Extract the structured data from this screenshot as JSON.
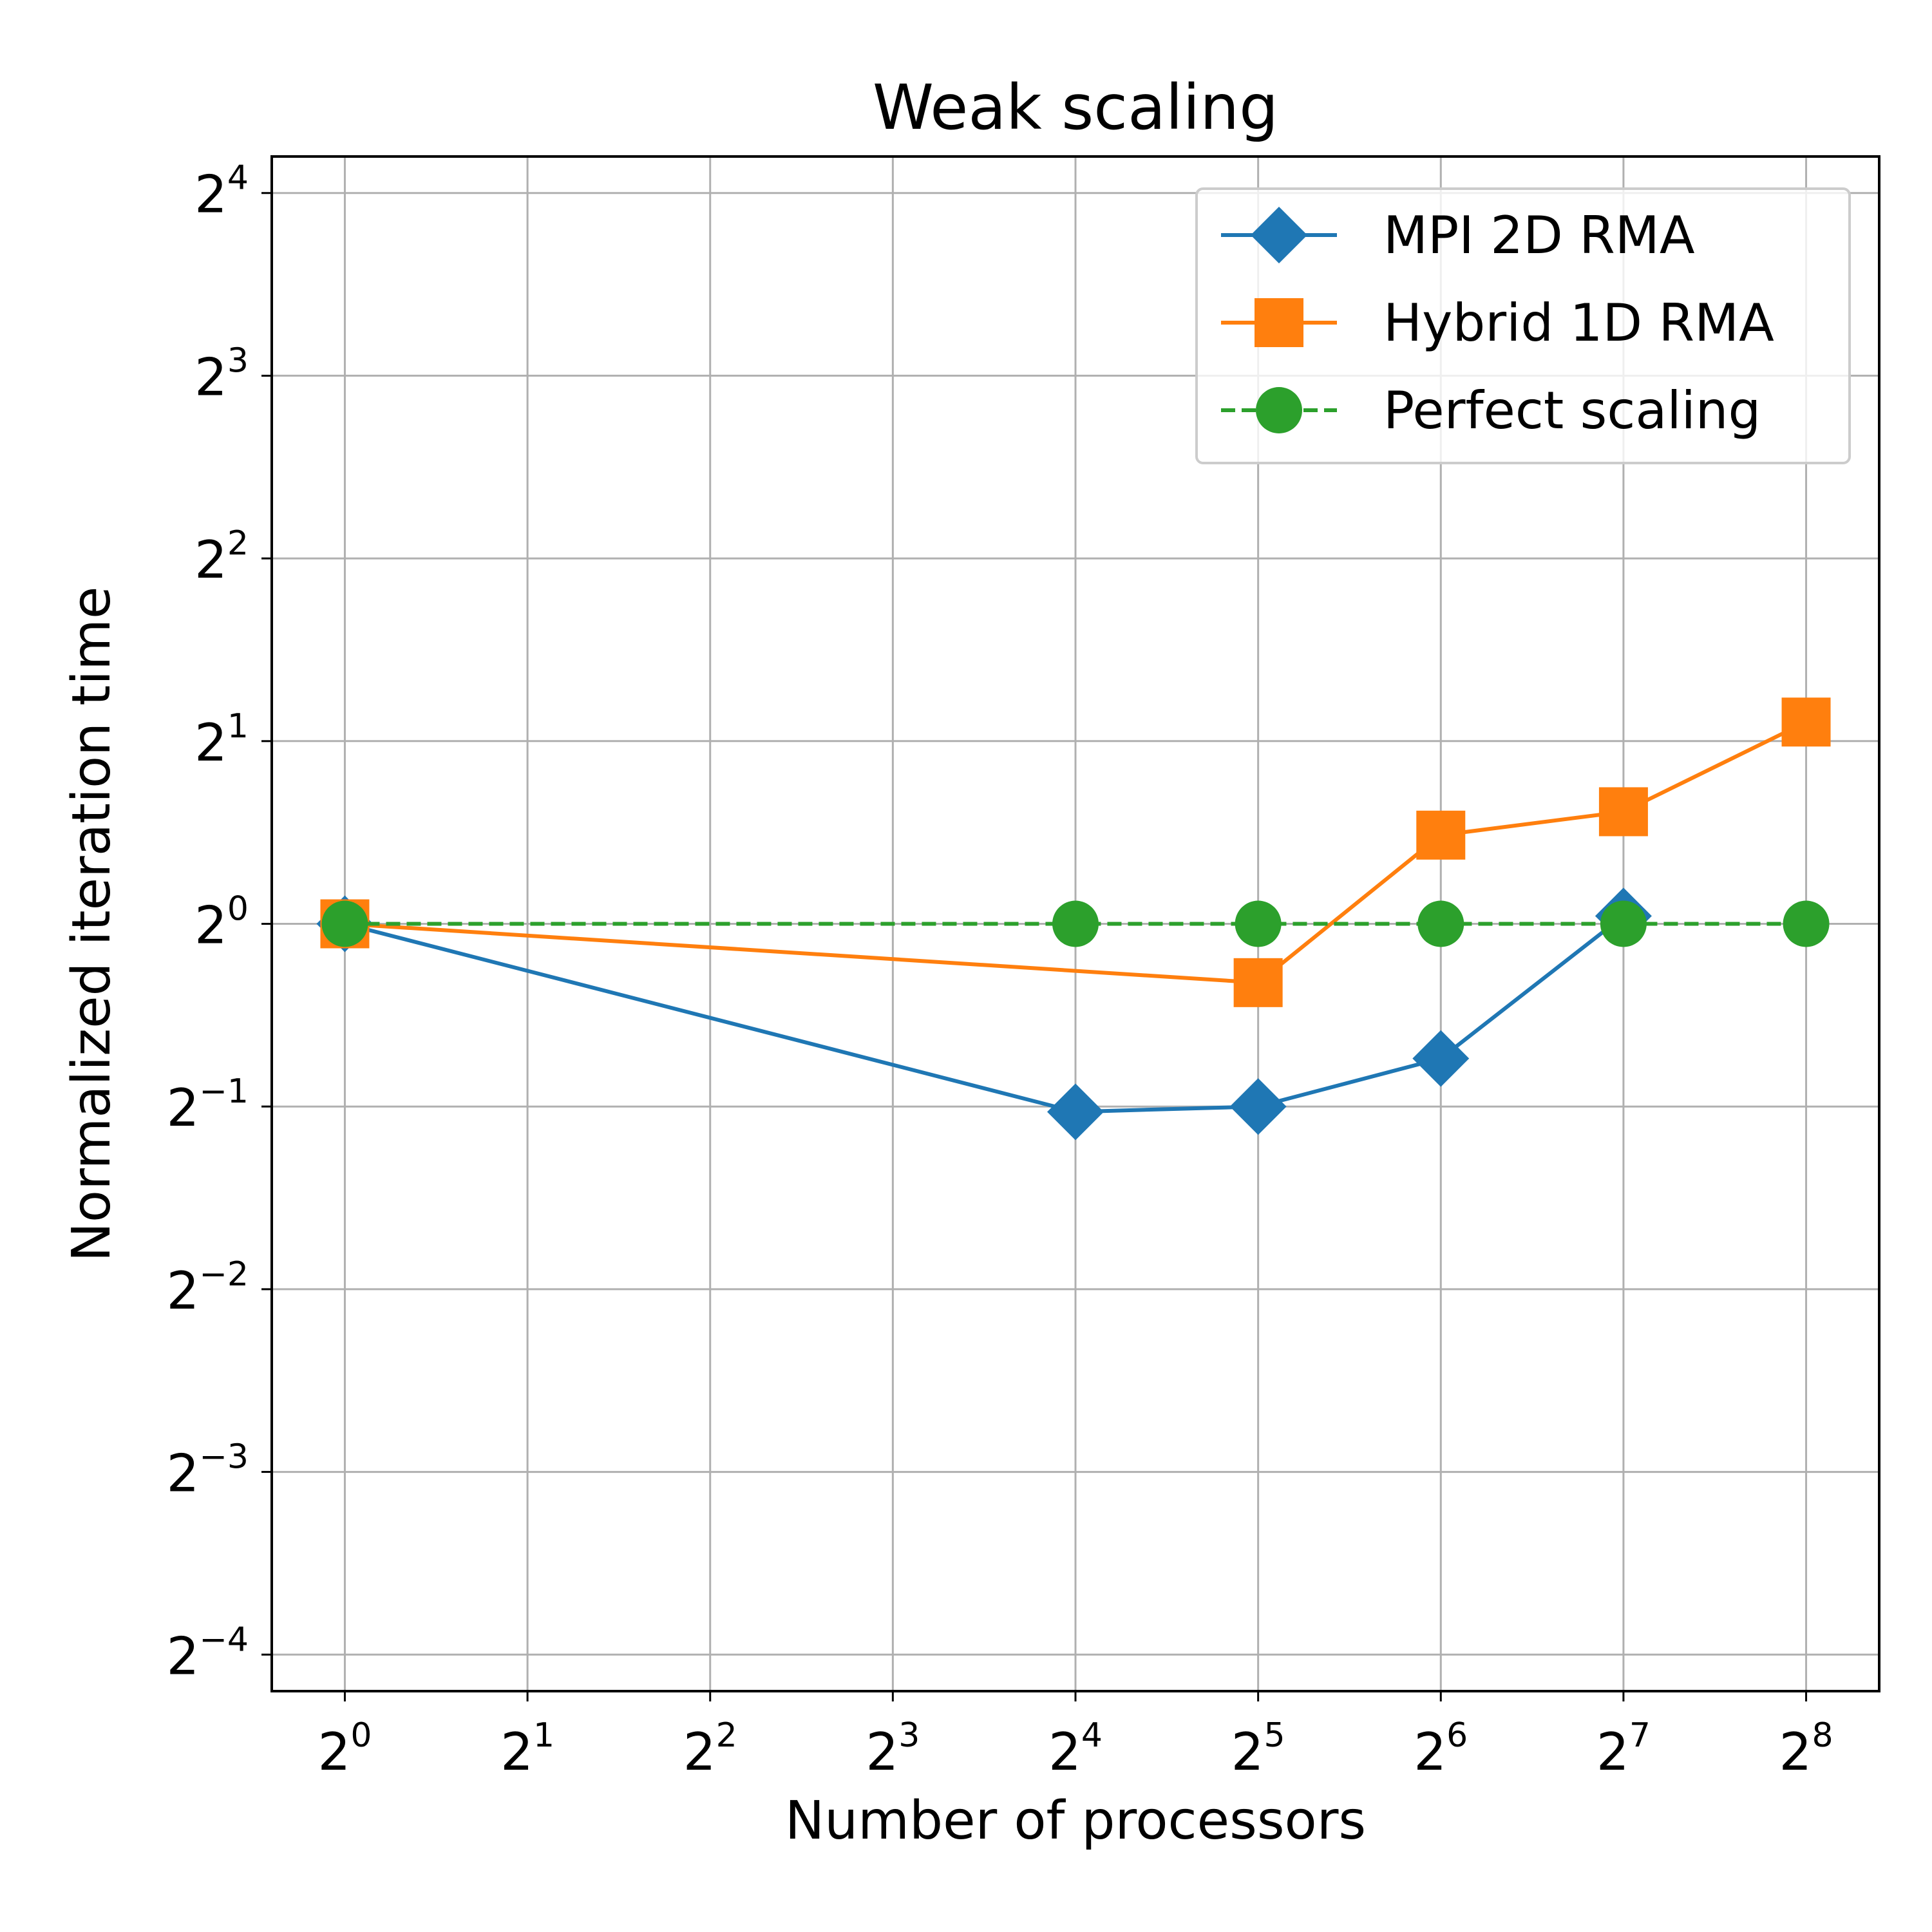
{
  "chart_data": {
    "type": "line",
    "title": "Weak scaling",
    "xlabel": "Number of processors",
    "ylabel": "Normalized iteration time",
    "x_scale": "log2",
    "y_scale": "log2",
    "xlim_exp": [
      -0.4,
      8.4
    ],
    "ylim_exp": [
      -4.2,
      4.2
    ],
    "x_ticks": [
      {
        "base": "2",
        "exp": "0"
      },
      {
        "base": "2",
        "exp": "1"
      },
      {
        "base": "2",
        "exp": "2"
      },
      {
        "base": "2",
        "exp": "3"
      },
      {
        "base": "2",
        "exp": "4"
      },
      {
        "base": "2",
        "exp": "5"
      },
      {
        "base": "2",
        "exp": "6"
      },
      {
        "base": "2",
        "exp": "7"
      },
      {
        "base": "2",
        "exp": "8"
      }
    ],
    "y_ticks": [
      {
        "base": "2",
        "exp": "−4"
      },
      {
        "base": "2",
        "exp": "−3"
      },
      {
        "base": "2",
        "exp": "−2"
      },
      {
        "base": "2",
        "exp": "−1"
      },
      {
        "base": "2",
        "exp": "0"
      },
      {
        "base": "2",
        "exp": "1"
      },
      {
        "base": "2",
        "exp": "2"
      },
      {
        "base": "2",
        "exp": "3"
      },
      {
        "base": "2",
        "exp": "4"
      }
    ],
    "grid": true,
    "legend_position": "top-right",
    "series": [
      {
        "name": "MPI 2D RMA",
        "color": "#1f77b4",
        "marker": "diamond",
        "line": "solid",
        "x": [
          1,
          16,
          32,
          64,
          128
        ],
        "y": [
          1.0,
          0.49,
          0.5,
          0.6,
          1.03
        ]
      },
      {
        "name": "Hybrid 1D RMA",
        "color": "#ff7f0e",
        "marker": "square",
        "line": "solid",
        "x": [
          1,
          32,
          64,
          128,
          256
        ],
        "y": [
          1.0,
          0.8,
          1.4,
          1.53,
          2.15
        ]
      },
      {
        "name": "Perfect scaling",
        "color": "#2ca02c",
        "marker": "circle",
        "line": "dashed",
        "x": [
          1,
          16,
          32,
          64,
          128,
          256
        ],
        "y": [
          1,
          1,
          1,
          1,
          1,
          1
        ]
      }
    ]
  }
}
